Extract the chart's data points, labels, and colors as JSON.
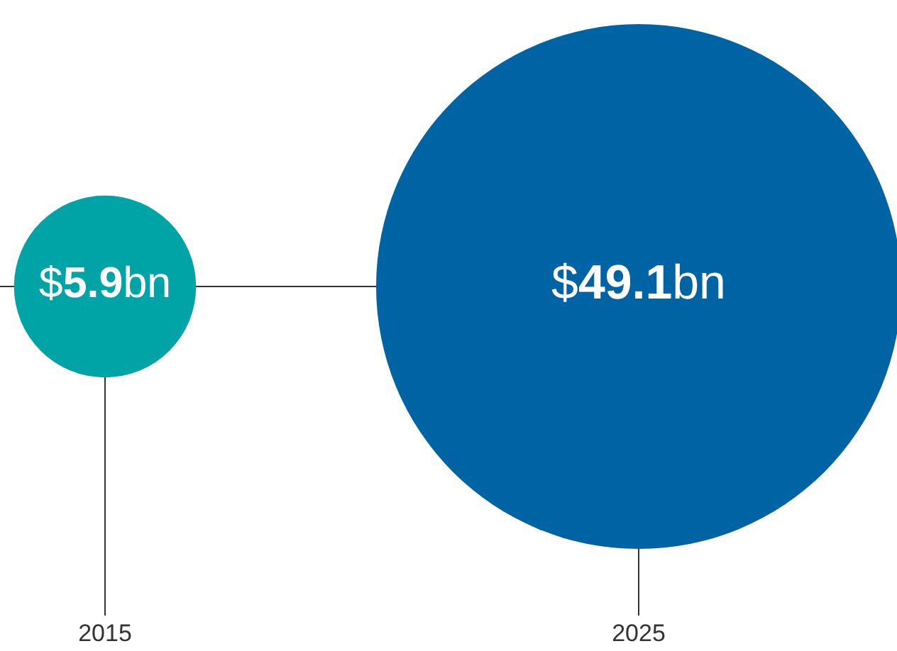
{
  "chart_data": {
    "type": "other",
    "categories": [
      "2015",
      "2025"
    ],
    "values": [
      5.9,
      49.1
    ],
    "value_labels": [
      "$5.9bn",
      "$49.1bn"
    ],
    "colors": [
      "#00a3a6",
      "#0063a3"
    ]
  }
}
